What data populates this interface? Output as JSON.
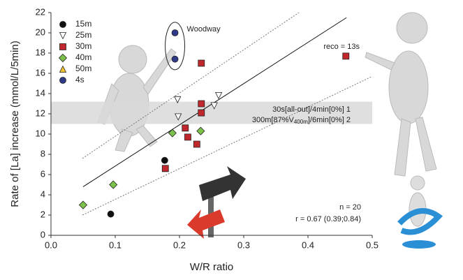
{
  "chart_data": {
    "type": "scatter",
    "x_label": "W/R ratio",
    "y_label": "Rate of [La] increase (mmol/L/5min)",
    "xlim": [
      0,
      0.5
    ],
    "xticks": [
      {
        "value": 0,
        "label": "0.0"
      },
      0.1,
      0.2,
      0.3,
      0.4,
      0.5
    ],
    "ylim": [
      0,
      22
    ],
    "yticks": [
      0,
      2,
      4,
      6,
      8,
      10,
      12,
      14,
      16,
      18,
      20,
      22
    ],
    "series": [
      {
        "name": "15m",
        "color": "#111111",
        "marker": "circle",
        "x": [
          0.093,
          0.177
        ],
        "values": [
          2.1,
          7.4
        ]
      },
      {
        "name": "25m",
        "color": "#ffffff",
        "marker": "triangle-down",
        "x": [
          0.197,
          0.198,
          0.261,
          0.254
        ],
        "values": [
          13.4,
          11.7,
          13.8,
          12.8
        ]
      },
      {
        "name": "30m",
        "color": "#c0282d",
        "marker": "square",
        "x": [
          0.234,
          0.234,
          0.234,
          0.209,
          0.213,
          0.227,
          0.178,
          0.459
        ],
        "values": [
          17.0,
          13.0,
          12.1,
          10.6,
          9.7,
          9.0,
          6.6,
          17.7
        ]
      },
      {
        "name": "40m",
        "color": "#7cc24a",
        "marker": "diamond",
        "x": [
          0.05,
          0.097,
          0.189,
          0.233
        ],
        "values": [
          3.0,
          5.0,
          10.1,
          10.3
        ]
      },
      {
        "name": "50m",
        "color": "#f2c12e",
        "marker": "triangle-up",
        "x": [],
        "values": []
      },
      {
        "name": "4s",
        "color": "#2e3a87",
        "marker": "circle",
        "x": [
          0.193,
          0.193
        ],
        "values": [
          20.0,
          17.4
        ]
      }
    ],
    "regression": {
      "x": [
        0.05,
        0.46
      ],
      "values": [
        4.8,
        21.5
      ]
    },
    "ci_upper": {
      "x": [
        0.049,
        0.386
      ],
      "values": [
        7.6,
        22.0
      ]
    },
    "ci_lower": {
      "x": [
        0.049,
        0.5
      ],
      "values": [
        2.0,
        15.7
      ]
    },
    "band": {
      "values": [
        11.0,
        13.2
      ],
      "label_1": "30s[all-out]/4min[0%] 1",
      "label_2": {
        "text": "300m[87%V",
        "sub": "400m",
        "after": "]/6min[0%] 2"
      }
    },
    "annotations": {
      "woodway": "Woodway",
      "reco": "reco = 13s",
      "n": "n = 20",
      "r": "r = 0.67 (0.39;0.84)"
    }
  }
}
